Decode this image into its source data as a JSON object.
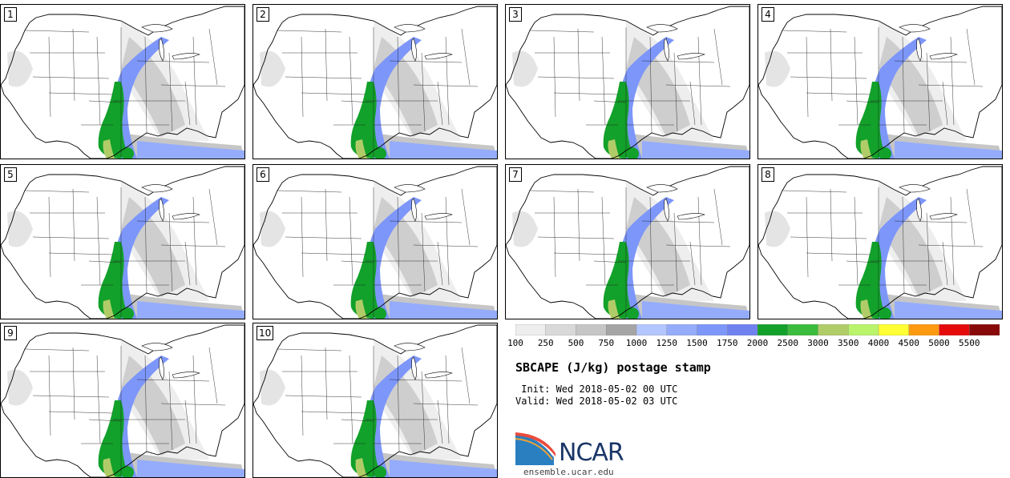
{
  "panels": [
    {
      "id": "1"
    },
    {
      "id": "2"
    },
    {
      "id": "3"
    },
    {
      "id": "4"
    },
    {
      "id": "5"
    },
    {
      "id": "6"
    },
    {
      "id": "7"
    },
    {
      "id": "8"
    },
    {
      "id": "9"
    },
    {
      "id": "10"
    }
  ],
  "title": "SBCAPE (J/kg) postage stamp",
  "init": " Init: Wed 2018-05-02 00 UTC",
  "valid": "Valid: Wed 2018-05-02 03 UTC",
  "logo": {
    "text": "NCAR",
    "site": "ensemble.ucar.edu"
  },
  "chart_data": {
    "type": "heatmap",
    "title": "SBCAPE (J/kg) postage stamp",
    "unit": "J/kg",
    "colorbar": {
      "levels": [
        100,
        250,
        500,
        750,
        1000,
        1250,
        1500,
        1750,
        2000,
        2500,
        3000,
        3500,
        4000,
        4500,
        5000,
        5500
      ],
      "colors": [
        "#eeeeee",
        "#d9d9d9",
        "#c6c6c6",
        "#a5a5a5",
        "#b4c6ff",
        "#95acfc",
        "#7d96fa",
        "#6f82f0",
        "#12a12a",
        "#3cbc3c",
        "#b0cc68",
        "#baf46b",
        "#ffff33",
        "#ff9a10",
        "#e60b0b",
        "#870909"
      ]
    }
  }
}
